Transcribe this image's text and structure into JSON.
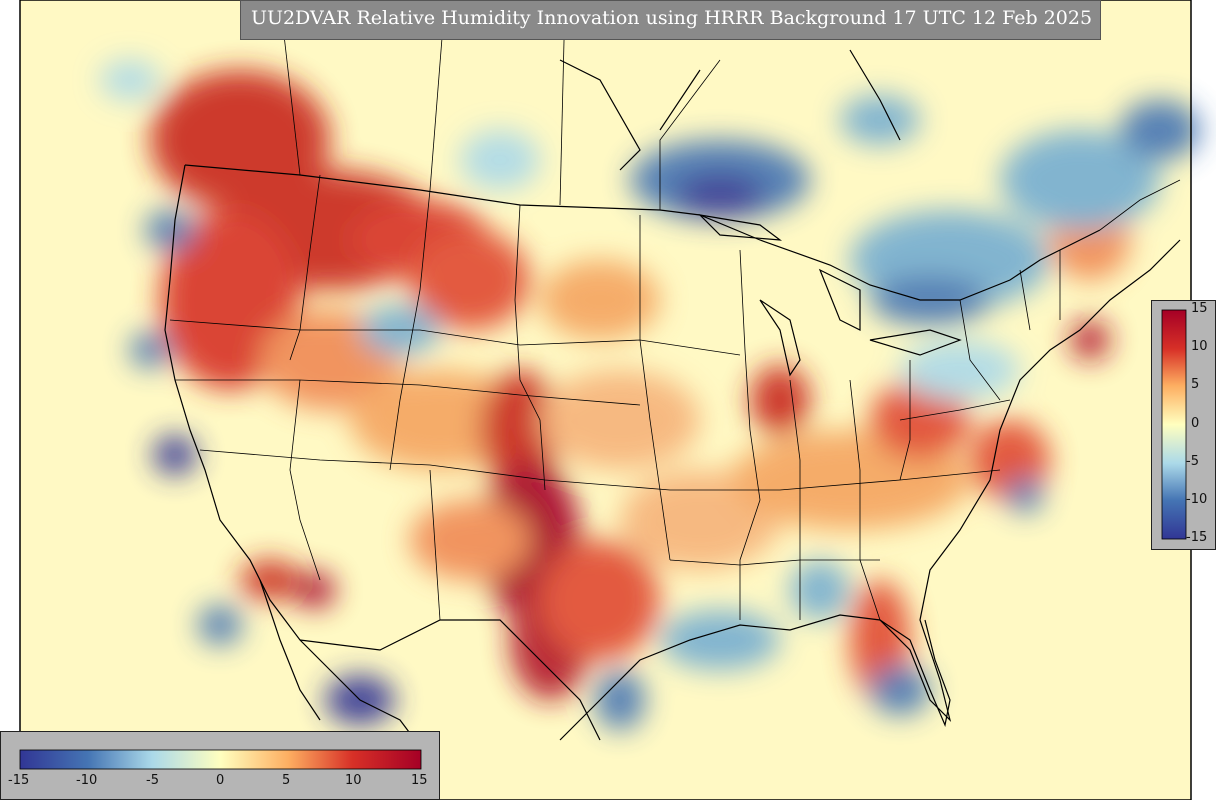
{
  "title": "UU2DVAR Relative Humidity Innovation using HRRR Background 17 UTC 12 Feb 2025",
  "colorbar": {
    "min": -15,
    "max": 15,
    "horizontal_tick_labels": [
      "-15",
      "-10",
      "-5",
      "0",
      "5",
      "10",
      "15"
    ],
    "vertical_tick_labels": [
      "15",
      "10",
      "5",
      "0",
      "-5",
      "-10",
      "-15"
    ],
    "colors": {
      "deep_blue": "#313695",
      "blue": "#4575b4",
      "light_blue": "#abd9e9",
      "neutral": "#ffffbf",
      "light_orange": "#fdae61",
      "red": "#d73027",
      "deep_red": "#a50026"
    }
  },
  "map": {
    "region": "Continental United States",
    "background_color": "#fff9c4",
    "boundary_color": "#000000"
  }
}
